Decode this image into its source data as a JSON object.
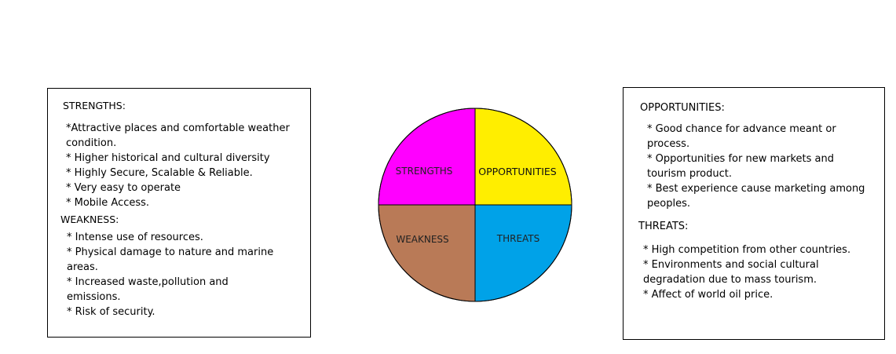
{
  "colors": {
    "strengths": "#ff00ff",
    "opportunities": "#ffee00",
    "weakness": "#b97a57",
    "threats": "#00a2e8"
  },
  "left_panel": {
    "strengths_heading": "STRENGTHS:",
    "strengths_items": [
      "*Attractive places and comfortable weather",
      "condition.",
      "* Higher historical and cultural diversity",
      "* Highly Secure, Scalable & Reliable.",
      "* Very easy to operate",
      "* Mobile Access."
    ],
    "weakness_heading": "WEAKNESS:",
    "weakness_items": [
      "* Intense use of resources.",
      "* Physical damage to nature and marine",
      "areas.",
      "* Increased waste,pollution and",
      "emissions.",
      "* Risk of security."
    ]
  },
  "right_panel": {
    "opportunities_heading": "OPPORTUNITIES:",
    "opportunities_items": [
      "* Good chance for advance meant or",
      "process.",
      "* Opportunities for new markets and",
      "tourism product.",
      "* Best experience cause marketing among",
      "peoples."
    ],
    "threats_heading": "THREATS:",
    "threats_items": [
      "* High competition from other countries.",
      "* Environments and social cultural",
      "degradation due to mass tourism.",
      "* Affect of world oil price."
    ]
  },
  "circle": {
    "strengths_label": "STRENGTHS",
    "opportunities_label": "OPPORTUNITIES",
    "weakness_label": "WEAKNESS",
    "threats_label": "THREATS"
  }
}
